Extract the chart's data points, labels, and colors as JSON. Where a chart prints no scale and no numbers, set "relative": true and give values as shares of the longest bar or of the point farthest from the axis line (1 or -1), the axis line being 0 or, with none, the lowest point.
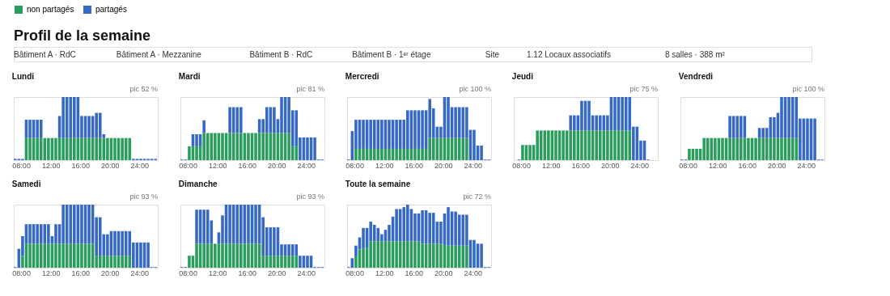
{
  "chart_data": [
    {
      "type": "other",
      "title": "Profil de la semaine",
      "annotations": [
        "Bâtiment A · RdC",
        "Bâtiment A · Mezzanine",
        "Bâtiment B · RdC",
        "Bâtiment B · 1ᵉʳ étage",
        "Site",
        "1.12 Locaux associatifs",
        "8 salles · 388 m²"
      ]
    },
    {
      "type": "bar",
      "title": "Lundi",
      "annotations": [
        "pic 52 %"
      ],
      "stacked": true,
      "relative": true,
      "legend": "top",
      "tick_labels": "x",
      "x": [
        7,
        7.5,
        8,
        8.5,
        9,
        9.5,
        10,
        10.5,
        11,
        11.5,
        12,
        12.5,
        13,
        13.5,
        14,
        14.5,
        15,
        15.5,
        16,
        16.5,
        17,
        17.5,
        18,
        18.5,
        19,
        19.5,
        20,
        20.5,
        21,
        21.5,
        22,
        22.5,
        23,
        23.5,
        24,
        24.5,
        25,
        25.5,
        26
      ],
      "xlim": [
        7,
        26.5
      ],
      "xticks": [
        {
          "value": 8,
          "label": "08:00"
        },
        {
          "value": 12,
          "label": "12:00"
        },
        {
          "value": 16,
          "label": "16:00"
        },
        {
          "value": 20,
          "label": "20:00"
        },
        {
          "value": 24,
          "label": "24:00"
        }
      ],
      "series": [
        {
          "name": "non partagés",
          "color": "#2a9d5c",
          "values": [
            0,
            0,
            0,
            0.35,
            0.35,
            0.35,
            0.35,
            0.35,
            0.35,
            0.35,
            0.35,
            0.35,
            0.35,
            0.35,
            0.35,
            0.35,
            0.35,
            0.35,
            0.35,
            0.35,
            0.35,
            0.35,
            0.35,
            0.35,
            0.35,
            0.35,
            0.35,
            0.35,
            0.35,
            0.35,
            0.35,
            0.35,
            0,
            0,
            0,
            0,
            0,
            0,
            0
          ]
        },
        {
          "name": "partagés",
          "color": "#3569c4",
          "values": [
            0.02,
            0.02,
            0.02,
            0.29,
            0.29,
            0.29,
            0.29,
            0.29,
            0,
            0,
            0,
            0,
            0.35,
            0.65,
            0.65,
            0.65,
            0.65,
            0.65,
            0.35,
            0.35,
            0.35,
            0.35,
            0.4,
            0.4,
            0.06,
            0,
            0,
            0,
            0,
            0,
            0,
            0,
            0.02,
            0.02,
            0.02,
            0.02,
            0.02,
            0.02,
            0.02
          ]
        }
      ]
    },
    {
      "type": "bar",
      "title": "Mardi",
      "annotations": [
        "pic 81 %"
      ],
      "stacked": true,
      "relative": true,
      "legend": "top",
      "tick_labels": "x",
      "x": [
        7,
        7.5,
        8,
        8.5,
        9,
        9.5,
        10,
        10.5,
        11,
        11.5,
        12,
        12.5,
        13,
        13.5,
        14,
        14.5,
        15,
        15.5,
        16,
        16.5,
        17,
        17.5,
        18,
        18.5,
        19,
        19.5,
        20,
        20.5,
        21,
        21.5,
        22,
        22.5,
        23,
        23.5,
        24,
        24.5,
        25,
        25.5,
        26
      ],
      "xlim": [
        7,
        26.5
      ],
      "xticks": [
        {
          "value": 8,
          "label": "08:00"
        },
        {
          "value": 12,
          "label": "12:00"
        },
        {
          "value": 16,
          "label": "16:00"
        },
        {
          "value": 20,
          "label": "20:00"
        },
        {
          "value": 24,
          "label": "24:00"
        }
      ],
      "series": [
        {
          "name": "non partagés",
          "color": "#2a9d5c",
          "values": [
            0,
            0,
            0.22,
            0.22,
            0.22,
            0.22,
            0.43,
            0.43,
            0.43,
            0.43,
            0.43,
            0.43,
            0.43,
            0.43,
            0.43,
            0.43,
            0.43,
            0.43,
            0.43,
            0.43,
            0.43,
            0.43,
            0.43,
            0.43,
            0.43,
            0.43,
            0.43,
            0.43,
            0.43,
            0.43,
            0.22,
            0.22,
            0,
            0,
            0,
            0,
            0,
            0,
            0
          ]
        },
        {
          "name": "partagés",
          "color": "#3569c4",
          "values": [
            0.01,
            0.01,
            0,
            0.19,
            0.19,
            0.19,
            0.2,
            0,
            0,
            0,
            0,
            0,
            0,
            0.41,
            0.41,
            0.41,
            0.41,
            0,
            0,
            0,
            0,
            0.22,
            0.22,
            0.41,
            0.41,
            0.41,
            0.22,
            0.57,
            0.57,
            0.57,
            0.57,
            0.57,
            0.36,
            0.36,
            0.36,
            0.36,
            0.36,
            0.01,
            0.01
          ]
        }
      ]
    },
    {
      "type": "bar",
      "title": "Mercredi",
      "annotations": [
        "pic 100 %"
      ],
      "stacked": true,
      "relative": true,
      "legend": "top",
      "tick_labels": "x",
      "x": [
        7,
        7.5,
        8,
        8.5,
        9,
        9.5,
        10,
        10.5,
        11,
        11.5,
        12,
        12.5,
        13,
        13.5,
        14,
        14.5,
        15,
        15.5,
        16,
        16.5,
        17,
        17.5,
        18,
        18.5,
        19,
        19.5,
        20,
        20.5,
        21,
        21.5,
        22,
        22.5,
        23,
        23.5,
        24,
        24.5,
        25,
        25.5,
        26
      ],
      "xlim": [
        7,
        26.5
      ],
      "xticks": [
        {
          "value": 8,
          "label": "08:00"
        },
        {
          "value": 12,
          "label": "12:00"
        },
        {
          "value": 16,
          "label": "16:00"
        },
        {
          "value": 20,
          "label": "20:00"
        },
        {
          "value": 24,
          "label": "24:00"
        }
      ],
      "series": [
        {
          "name": "non partagés",
          "color": "#2a9d5c",
          "values": [
            0,
            0,
            0.18,
            0.18,
            0.18,
            0.18,
            0.18,
            0.18,
            0.18,
            0.18,
            0.18,
            0.18,
            0.18,
            0.18,
            0.18,
            0.18,
            0.18,
            0.18,
            0.18,
            0.18,
            0.18,
            0.18,
            0.35,
            0.35,
            0.35,
            0.35,
            0.35,
            0.35,
            0.35,
            0.35,
            0.35,
            0.35,
            0.35,
            0,
            0,
            0,
            0,
            0,
            0
          ]
        },
        {
          "name": "partagés",
          "color": "#3569c4",
          "values": [
            0.01,
            0.46,
            0.46,
            0.46,
            0.46,
            0.46,
            0.46,
            0.46,
            0.46,
            0.46,
            0.46,
            0.46,
            0.46,
            0.46,
            0.46,
            0.46,
            0.61,
            0.61,
            0.61,
            0.61,
            0.61,
            0.61,
            0.62,
            0.47,
            0.18,
            0.18,
            0.65,
            0.65,
            0.49,
            0.49,
            0.49,
            0.49,
            0.49,
            0.48,
            0.48,
            0.23,
            0.23,
            0.01,
            0.01
          ]
        }
      ]
    },
    {
      "type": "bar",
      "title": "Jeudi",
      "annotations": [
        "pic 75 %"
      ],
      "stacked": true,
      "relative": true,
      "legend": "top",
      "tick_labels": "x",
      "x": [
        7,
        7.5,
        8,
        8.5,
        9,
        9.5,
        10,
        10.5,
        11,
        11.5,
        12,
        12.5,
        13,
        13.5,
        14,
        14.5,
        15,
        15.5,
        16,
        16.5,
        17,
        17.5,
        18,
        18.5,
        19,
        19.5,
        20,
        20.5,
        21,
        21.5,
        22,
        22.5,
        23,
        23.5,
        24,
        24.5,
        25,
        25.5,
        26
      ],
      "xlim": [
        7,
        26.5
      ],
      "xticks": [
        {
          "value": 8,
          "label": "08:00"
        },
        {
          "value": 12,
          "label": "12:00"
        },
        {
          "value": 16,
          "label": "16:00"
        },
        {
          "value": 20,
          "label": "20:00"
        },
        {
          "value": 24,
          "label": "24:00"
        }
      ],
      "series": [
        {
          "name": "non partagés",
          "color": "#2a9d5c",
          "values": [
            0,
            0,
            0.24,
            0.24,
            0.24,
            0.24,
            0.47,
            0.47,
            0.47,
            0.47,
            0.47,
            0.47,
            0.47,
            0.47,
            0.47,
            0.47,
            0.47,
            0.47,
            0.47,
            0.47,
            0.47,
            0.47,
            0.47,
            0.47,
            0.47,
            0.47,
            0.47,
            0.47,
            0.47,
            0.47,
            0.47,
            0.47,
            0,
            0,
            0,
            0,
            0,
            0,
            0
          ]
        },
        {
          "name": "partagés",
          "color": "#3569c4",
          "values": [
            0,
            0.01,
            0,
            0,
            0,
            0,
            0,
            0,
            0,
            0,
            0,
            0,
            0,
            0,
            0,
            0.24,
            0.24,
            0.24,
            0.47,
            0.47,
            0.47,
            0.24,
            0.24,
            0.24,
            0.24,
            0.24,
            0.53,
            0.53,
            0.53,
            0.53,
            0.53,
            0.53,
            0.53,
            0.53,
            0.31,
            0.31,
            0.01,
            0,
            0
          ]
        }
      ]
    },
    {
      "type": "bar",
      "title": "Vendredi",
      "annotations": [
        "pic 100 %"
      ],
      "stacked": true,
      "relative": true,
      "legend": "top",
      "tick_labels": "x",
      "x": [
        7,
        7.5,
        8,
        8.5,
        9,
        9.5,
        10,
        10.5,
        11,
        11.5,
        12,
        12.5,
        13,
        13.5,
        14,
        14.5,
        15,
        15.5,
        16,
        16.5,
        17,
        17.5,
        18,
        18.5,
        19,
        19.5,
        20,
        20.5,
        21,
        21.5,
        22,
        22.5,
        23,
        23.5,
        24,
        24.5,
        25,
        25.5,
        26
      ],
      "xlim": [
        7,
        26.5
      ],
      "xticks": [
        {
          "value": 8,
          "label": "08:00"
        },
        {
          "value": 12,
          "label": "12:00"
        },
        {
          "value": 16,
          "label": "16:00"
        },
        {
          "value": 20,
          "label": "20:00"
        },
        {
          "value": 24,
          "label": "24:00"
        }
      ],
      "series": [
        {
          "name": "non partagés",
          "color": "#2a9d5c",
          "values": [
            0,
            0,
            0.18,
            0.18,
            0.18,
            0.18,
            0.35,
            0.35,
            0.35,
            0.35,
            0.35,
            0.35,
            0.35,
            0.35,
            0.35,
            0.35,
            0.35,
            0.35,
            0.35,
            0.35,
            0.35,
            0.35,
            0.35,
            0.35,
            0.35,
            0.35,
            0.35,
            0.35,
            0.35,
            0.35,
            0.35,
            0.35,
            0,
            0,
            0,
            0,
            0,
            0,
            0
          ]
        },
        {
          "name": "partagés",
          "color": "#3569c4",
          "values": [
            0.01,
            0.01,
            0,
            0,
            0,
            0,
            0,
            0,
            0,
            0,
            0,
            0,
            0,
            0.35,
            0.35,
            0.35,
            0.35,
            0.35,
            0,
            0,
            0,
            0.16,
            0.16,
            0.16,
            0.33,
            0.33,
            0.4,
            0.65,
            0.65,
            0.65,
            0.65,
            0.65,
            0.66,
            0.66,
            0.66,
            0.66,
            0.66,
            0.01,
            0.01
          ]
        }
      ]
    },
    {
      "type": "bar",
      "title": "Samedi",
      "annotations": [
        "pic 93 %"
      ],
      "stacked": true,
      "relative": true,
      "legend": "top",
      "tick_labels": "x",
      "x": [
        7,
        7.5,
        8,
        8.5,
        9,
        9.5,
        10,
        10.5,
        11,
        11.5,
        12,
        12.5,
        13,
        13.5,
        14,
        14.5,
        15,
        15.5,
        16,
        16.5,
        17,
        17.5,
        18,
        18.5,
        19,
        19.5,
        20,
        20.5,
        21,
        21.5,
        22,
        22.5,
        23,
        23.5,
        24,
        24.5,
        25,
        25.5,
        26
      ],
      "xlim": [
        7,
        26.5
      ],
      "xticks": [
        {
          "value": 8,
          "label": "08:00"
        },
        {
          "value": 12,
          "label": "12:00"
        },
        {
          "value": 16,
          "label": "16:00"
        },
        {
          "value": 20,
          "label": "20:00"
        },
        {
          "value": 24,
          "label": "24:00"
        }
      ],
      "series": [
        {
          "name": "non partagés",
          "color": "#2a9d5c",
          "values": [
            0,
            0,
            0.19,
            0.38,
            0.38,
            0.38,
            0.38,
            0.38,
            0.38,
            0.38,
            0.38,
            0.38,
            0.38,
            0.38,
            0.38,
            0.38,
            0.38,
            0.38,
            0.38,
            0.38,
            0.38,
            0.38,
            0.19,
            0.19,
            0.19,
            0.19,
            0.19,
            0.19,
            0.19,
            0.19,
            0.19,
            0.19,
            0,
            0,
            0,
            0,
            0,
            0,
            0
          ]
        },
        {
          "name": "partagés",
          "color": "#3569c4",
          "values": [
            0.01,
            0.3,
            0.31,
            0.31,
            0.31,
            0.31,
            0.31,
            0.31,
            0.31,
            0.31,
            0.12,
            0.31,
            0.31,
            0.62,
            0.62,
            0.62,
            0.62,
            0.62,
            0.62,
            0.62,
            0.62,
            0.62,
            0.61,
            0.61,
            0.34,
            0.34,
            0.39,
            0.39,
            0.39,
            0.39,
            0.39,
            0.39,
            0.4,
            0.4,
            0.4,
            0.4,
            0.4,
            0.01,
            0.01
          ]
        }
      ]
    },
    {
      "type": "bar",
      "title": "Dimanche",
      "annotations": [
        "pic 93 %"
      ],
      "stacked": true,
      "relative": true,
      "legend": "top",
      "tick_labels": "x",
      "x": [
        7,
        7.5,
        8,
        8.5,
        9,
        9.5,
        10,
        10.5,
        11,
        11.5,
        12,
        12.5,
        13,
        13.5,
        14,
        14.5,
        15,
        15.5,
        16,
        16.5,
        17,
        17.5,
        18,
        18.5,
        19,
        19.5,
        20,
        20.5,
        21,
        21.5,
        22,
        22.5,
        23,
        23.5,
        24,
        24.5,
        25,
        25.5,
        26
      ],
      "xlim": [
        7,
        26.5
      ],
      "xticks": [
        {
          "value": 8,
          "label": "08:00"
        },
        {
          "value": 12,
          "label": "12:00"
        },
        {
          "value": 16,
          "label": "16:00"
        },
        {
          "value": 20,
          "label": "20:00"
        },
        {
          "value": 24,
          "label": "24:00"
        }
      ],
      "series": [
        {
          "name": "non partagés",
          "color": "#2a9d5c",
          "values": [
            0,
            0,
            0.19,
            0.19,
            0.38,
            0.38,
            0.38,
            0.38,
            0.38,
            0.38,
            0.38,
            0.38,
            0.38,
            0.38,
            0.38,
            0.38,
            0.38,
            0.38,
            0.38,
            0.38,
            0.38,
            0.38,
            0.19,
            0.19,
            0.19,
            0.19,
            0.19,
            0.19,
            0.19,
            0.19,
            0.19,
            0.19,
            0,
            0,
            0,
            0,
            0,
            0,
            0
          ]
        },
        {
          "name": "partagés",
          "color": "#3569c4",
          "values": [
            0.01,
            0.01,
            0,
            0,
            0.54,
            0.54,
            0.54,
            0.54,
            0.37,
            0,
            0.18,
            0.45,
            0.62,
            0.62,
            0.62,
            0.62,
            0.62,
            0.62,
            0.62,
            0.62,
            0.62,
            0.62,
            0.61,
            0.45,
            0.45,
            0.45,
            0.45,
            0.18,
            0.18,
            0.18,
            0.18,
            0.18,
            0.19,
            0.19,
            0.19,
            0.19,
            0.01,
            0.01,
            0.01
          ]
        }
      ]
    },
    {
      "type": "bar",
      "title": "Toute la semaine",
      "annotations": [
        "pic 72 %"
      ],
      "stacked": true,
      "relative": true,
      "legend": "top",
      "tick_labels": "x",
      "x": [
        7,
        7.5,
        8,
        8.5,
        9,
        9.5,
        10,
        10.5,
        11,
        11.5,
        12,
        12.5,
        13,
        13.5,
        14,
        14.5,
        15,
        15.5,
        16,
        16.5,
        17,
        17.5,
        18,
        18.5,
        19,
        19.5,
        20,
        20.5,
        21,
        21.5,
        22,
        22.5,
        23,
        23.5,
        24,
        24.5,
        25,
        25.5,
        26
      ],
      "xlim": [
        7,
        26.5
      ],
      "xticks": [
        {
          "value": 8,
          "label": "08:00"
        },
        {
          "value": 12,
          "label": "12:00"
        },
        {
          "value": 16,
          "label": "16:00"
        },
        {
          "value": 20,
          "label": "20:00"
        },
        {
          "value": 24,
          "label": "24:00"
        }
      ],
      "series": [
        {
          "name": "non partagés",
          "color": "#2a9d5c",
          "values": [
            0,
            0,
            0.18,
            0.29,
            0.31,
            0.31,
            0.42,
            0.42,
            0.42,
            0.42,
            0.42,
            0.42,
            0.42,
            0.42,
            0.42,
            0.42,
            0.42,
            0.42,
            0.42,
            0.42,
            0.38,
            0.38,
            0.38,
            0.38,
            0.38,
            0.38,
            0.36,
            0.35,
            0.35,
            0.35,
            0.35,
            0.35,
            0.35,
            0,
            0,
            0,
            0,
            0,
            0
          ]
        },
        {
          "name": "partagés",
          "color": "#3569c4",
          "values": [
            0.01,
            0.15,
            0.17,
            0.19,
            0.32,
            0.32,
            0.31,
            0.26,
            0.21,
            0.11,
            0.18,
            0.26,
            0.39,
            0.51,
            0.51,
            0.54,
            0.58,
            0.51,
            0.44,
            0.44,
            0.53,
            0.53,
            0.49,
            0.49,
            0.35,
            0.35,
            0.5,
            0.61,
            0.54,
            0.54,
            0.49,
            0.49,
            0.49,
            0.44,
            0.44,
            0.38,
            0.38,
            0.01,
            0.01
          ]
        }
      ]
    }
  ]
}
